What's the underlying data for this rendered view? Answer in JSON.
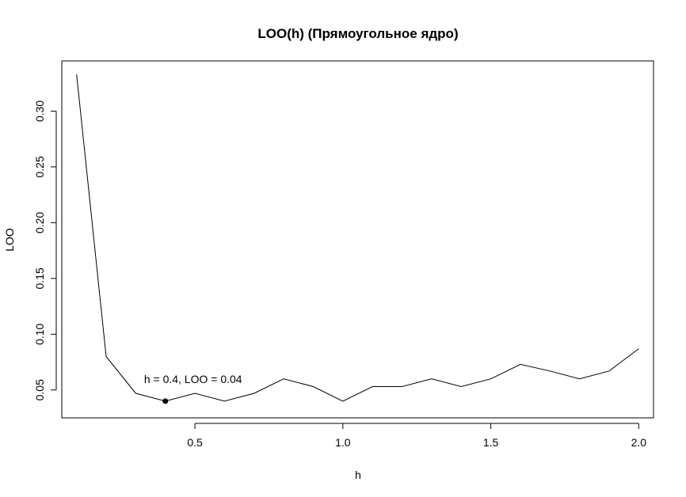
{
  "chart_data": {
    "type": "line",
    "title": "LOO(h) (Прямоугольное ядро)",
    "xlabel": "h",
    "ylabel": "LOO",
    "xlim": [
      0.05,
      2.05
    ],
    "ylim": [
      0.025,
      0.345
    ],
    "x_ticks": [
      0.5,
      1.0,
      1.5,
      2.0
    ],
    "x_tick_labels": [
      "0.5",
      "1.0",
      "1.5",
      "2.0"
    ],
    "y_ticks": [
      0.05,
      0.1,
      0.15,
      0.2,
      0.25,
      0.3
    ],
    "y_tick_labels": [
      "0.05",
      "0.10",
      "0.15",
      "0.20",
      "0.25",
      "0.30"
    ],
    "grid": false,
    "series": [
      {
        "x": [
          0.1,
          0.2,
          0.3,
          0.4,
          0.5,
          0.6,
          0.7,
          0.8,
          0.9,
          1.0,
          1.1,
          1.2,
          1.3,
          1.4,
          1.5,
          1.6,
          1.7,
          1.8,
          1.9,
          2.0
        ],
        "y": [
          0.333,
          0.08,
          0.047,
          0.04,
          0.047,
          0.04,
          0.047,
          0.06,
          0.053,
          0.04,
          0.053,
          0.053,
          0.06,
          0.053,
          0.06,
          0.073,
          0.067,
          0.06,
          0.067,
          0.087
        ],
        "color": "#000000"
      }
    ],
    "highlight_point": {
      "x": 0.4,
      "y": 0.04
    },
    "annotation": "h = 0.4, LOO = 0.04"
  }
}
